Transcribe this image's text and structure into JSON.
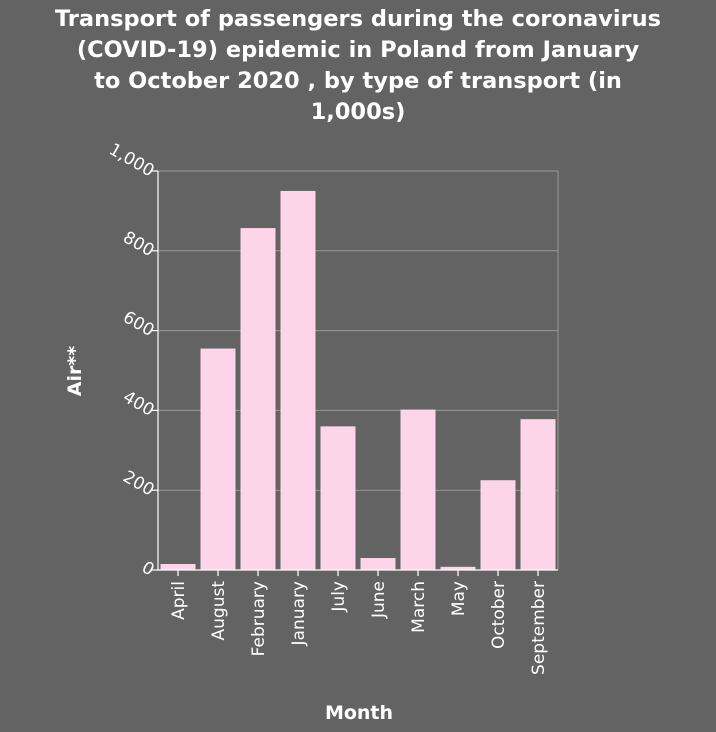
{
  "chart_data": {
    "type": "bar",
    "title_lines": [
      "Transport of passengers during the coronavirus",
      "(COVID-19) epidemic in Poland from January",
      "to October 2020 , by type of transport (in",
      "1,000s)"
    ],
    "xlabel": "Month",
    "ylabel": "Air**",
    "categories": [
      "April",
      "August",
      "February",
      "January",
      "July",
      "June",
      "March",
      "May",
      "October",
      "September"
    ],
    "values": [
      15,
      555,
      857,
      950,
      360,
      30,
      402,
      8,
      225,
      378
    ],
    "ylim": [
      0,
      1000
    ],
    "yticks": [
      0,
      200,
      400,
      600,
      800,
      1000
    ],
    "ytick_labels": [
      "0",
      "200",
      "400",
      "600",
      "800",
      "1,000"
    ],
    "grid": true,
    "legend": "none",
    "colors": {
      "background": "#636363",
      "bar": "#fdd5e8",
      "grid": "#9a9a9a",
      "text": "#ffffff"
    }
  }
}
